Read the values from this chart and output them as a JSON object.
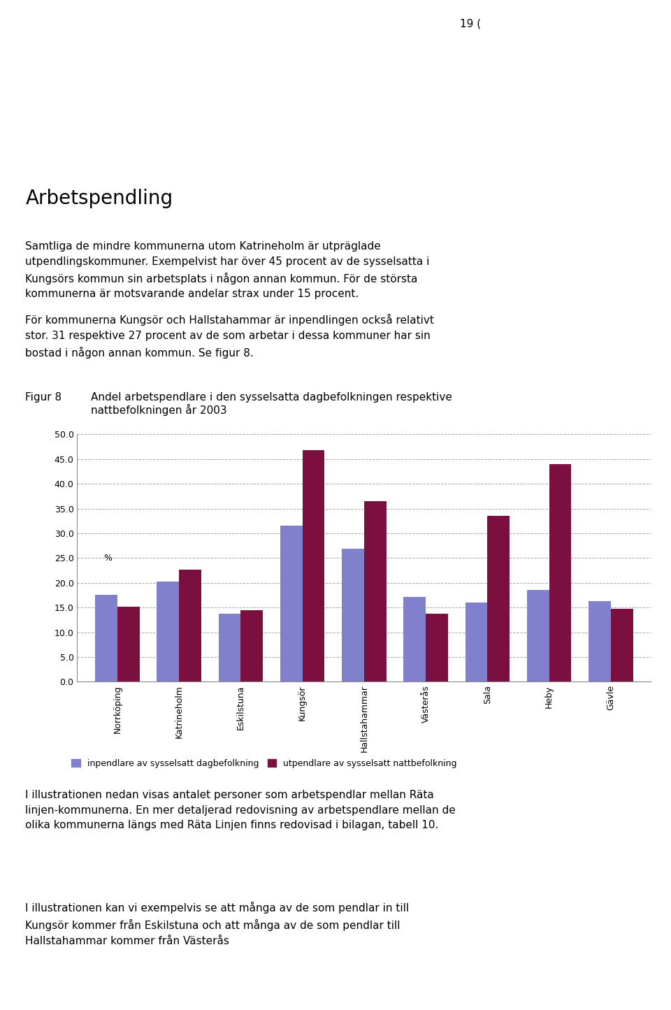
{
  "categories": [
    "Norrköping",
    "Katrineholm",
    "Eskilstuna",
    "Kungsör",
    "Hallstahammar",
    "Västerås",
    "Sala",
    "Heby",
    "Gävle"
  ],
  "inpendlare": [
    17.5,
    20.3,
    13.7,
    31.5,
    26.9,
    17.1,
    16.0,
    18.5,
    16.3
  ],
  "utpendlare": [
    15.2,
    22.6,
    14.4,
    46.8,
    36.5,
    13.7,
    33.5,
    44.0,
    14.7
  ],
  "color_inpendlare": "#8080cc",
  "color_utpendlare": "#7b1040",
  "ylim": [
    0,
    50
  ],
  "yticks": [
    0.0,
    5.0,
    10.0,
    15.0,
    20.0,
    25.0,
    30.0,
    35.0,
    40.0,
    45.0,
    50.0
  ],
  "legend_inpendlare": "inpendlare av sysselsatt dagbefolkning",
  "legend_utpendlare": "utpendlare av sysselsatt nattbefolkning",
  "figur_label": "Figur 8",
  "figur_title": "Andel arbetspendlare i den sysselsatta dagbefolkningen respektive\nnattbefolkningen år 2003",
  "background_color": "#ffffff",
  "grid_color": "#aaaaaa",
  "page_number": "19 (",
  "heading": "Arbetspendling",
  "body_text_1": "Samtliga de mindre kommunerna utom Katrineholm är utpräglade\nutpendlingskommuner. Exempelvist har över 45 procent av de sysselsatta i\nKungsörs kommun sin arbetsplats i någon annan kommun. För de största\nkommunerna är motsvarande andelar strax under 15 procent.",
  "body_text_2": "För kommunerna Kungsör och Hallstahammar är inpendlingen också relativt\nstor. 31 respektive 27 procent av de som arbetar i dessa kommuner har sin\nbostad i någon annan kommun. Se figur 8.",
  "bottom_text_1": "I illustrationen nedan visas antalet personer som arbetspendlar mellan Räta\nlinjen-kommunerna. En mer detaljerad redovisning av arbetspendlare mellan de\nolika kommunerna längs med Räta Linjen finns redovisad i bilagan, tabell 10.",
  "bottom_text_2": "I illustrationen kan vi exempelvis se att många av de som pendlar in till\nKungsör kommer från Eskilstuna och att många av de som pendlar till\nHallstahammar kommer från Västerås"
}
